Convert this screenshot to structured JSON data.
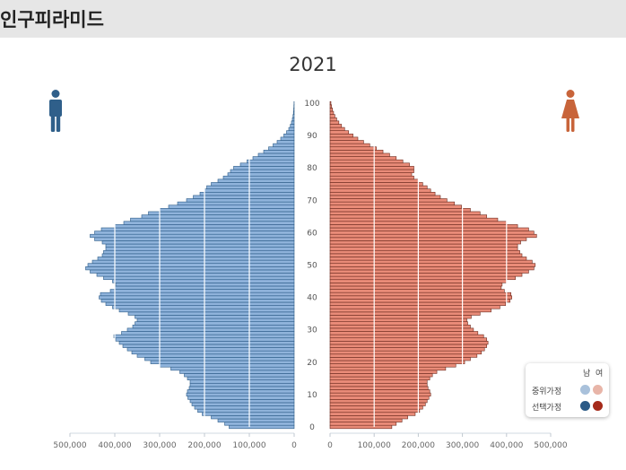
{
  "header": {
    "title": "인구피라미드"
  },
  "chart_data": {
    "type": "bar",
    "title": "2021",
    "orientation": "horizontal-population-pyramid",
    "age_axis": {
      "ticks": [
        0,
        10,
        20,
        30,
        40,
        50,
        60,
        70,
        80,
        90,
        100
      ],
      "range": [
        0,
        100
      ]
    },
    "male_axis": {
      "ticks": [
        "500,000",
        "400,000",
        "300,000",
        "200,000",
        "100,000",
        "0"
      ],
      "range": [
        0,
        500000
      ]
    },
    "female_axis": {
      "ticks": [
        "0",
        "100,000",
        "200,000",
        "300,000",
        "400,000",
        "500,000"
      ],
      "range": [
        0,
        500000
      ]
    },
    "grid": true,
    "ages": [
      0,
      1,
      2,
      3,
      4,
      5,
      6,
      7,
      8,
      9,
      10,
      11,
      12,
      13,
      14,
      15,
      16,
      17,
      18,
      19,
      20,
      21,
      22,
      23,
      24,
      25,
      26,
      27,
      28,
      29,
      30,
      31,
      32,
      33,
      34,
      35,
      36,
      37,
      38,
      39,
      40,
      41,
      42,
      43,
      44,
      45,
      46,
      47,
      48,
      49,
      50,
      51,
      52,
      53,
      54,
      55,
      56,
      57,
      58,
      59,
      60,
      61,
      62,
      63,
      64,
      65,
      66,
      67,
      68,
      69,
      70,
      71,
      72,
      73,
      74,
      75,
      76,
      77,
      78,
      79,
      80,
      81,
      82,
      83,
      84,
      85,
      86,
      87,
      88,
      89,
      90,
      91,
      92,
      93,
      94,
      95,
      96,
      97,
      98,
      99,
      100
    ],
    "series": [
      {
        "name": "남",
        "color": "#8fb3db",
        "edge_color": "#2b5a86",
        "values": [
          145000,
          155000,
          170000,
          185000,
          205000,
          215000,
          222000,
          228000,
          232000,
          237000,
          240000,
          238000,
          234000,
          232000,
          232000,
          238000,
          245000,
          255000,
          275000,
          300000,
          320000,
          333000,
          350000,
          362000,
          372000,
          382000,
          390000,
          398000,
          402000,
          385000,
          372000,
          360000,
          355000,
          350000,
          355000,
          370000,
          390000,
          405000,
          420000,
          430000,
          435000,
          432000,
          410000,
          400000,
          398000,
          405000,
          425000,
          440000,
          455000,
          465000,
          460000,
          450000,
          438000,
          428000,
          425000,
          420000,
          420000,
          428000,
          445000,
          455000,
          445000,
          430000,
          400000,
          380000,
          365000,
          340000,
          325000,
          300000,
          280000,
          260000,
          240000,
          225000,
          210000,
          200000,
          195000,
          185000,
          170000,
          158000,
          148000,
          142000,
          135000,
          120000,
          105000,
          92000,
          80000,
          68000,
          57000,
          47000,
          38000,
          30000,
          23000,
          17000,
          12000,
          8500,
          6000,
          4000,
          2500,
          1600,
          1000,
          600,
          300
        ]
      },
      {
        "name": "여",
        "color": "#e98b78",
        "edge_color": "#6b2a1e",
        "values": [
          140000,
          150000,
          163000,
          176000,
          193000,
          203000,
          210000,
          216000,
          220000,
          224000,
          228000,
          226000,
          222000,
          220000,
          220000,
          226000,
          232000,
          242000,
          262000,
          285000,
          305000,
          318000,
          333000,
          343000,
          350000,
          355000,
          358000,
          355000,
          348000,
          335000,
          325000,
          318000,
          312000,
          310000,
          320000,
          340000,
          365000,
          385000,
          398000,
          408000,
          412000,
          410000,
          395000,
          388000,
          390000,
          400000,
          420000,
          435000,
          450000,
          462000,
          465000,
          458000,
          445000,
          435000,
          430000,
          425000,
          425000,
          432000,
          445000,
          468000,
          462000,
          450000,
          425000,
          400000,
          380000,
          355000,
          340000,
          318000,
          298000,
          282000,
          265000,
          250000,
          238000,
          228000,
          220000,
          210000,
          200000,
          190000,
          185000,
          190000,
          190000,
          180000,
          165000,
          150000,
          135000,
          120000,
          105000,
          90000,
          76000,
          63000,
          52000,
          42000,
          33000,
          26000,
          20000,
          15000,
          11000,
          8000,
          5500,
          3500,
          2000
        ]
      }
    ]
  },
  "legend": {
    "male_label": "남",
    "female_label": "여",
    "rows": [
      "중위가정",
      "선택가정"
    ],
    "colors": {
      "male_median": "#a9c1db",
      "female_median": "#e8b5a8",
      "male_selected": "#2b5a86",
      "female_selected": "#a52a1a"
    }
  },
  "icons": {
    "male": "male-person-icon",
    "female": "female-person-icon",
    "male_color": "#2f5f8a",
    "female_color": "#c8643a"
  }
}
